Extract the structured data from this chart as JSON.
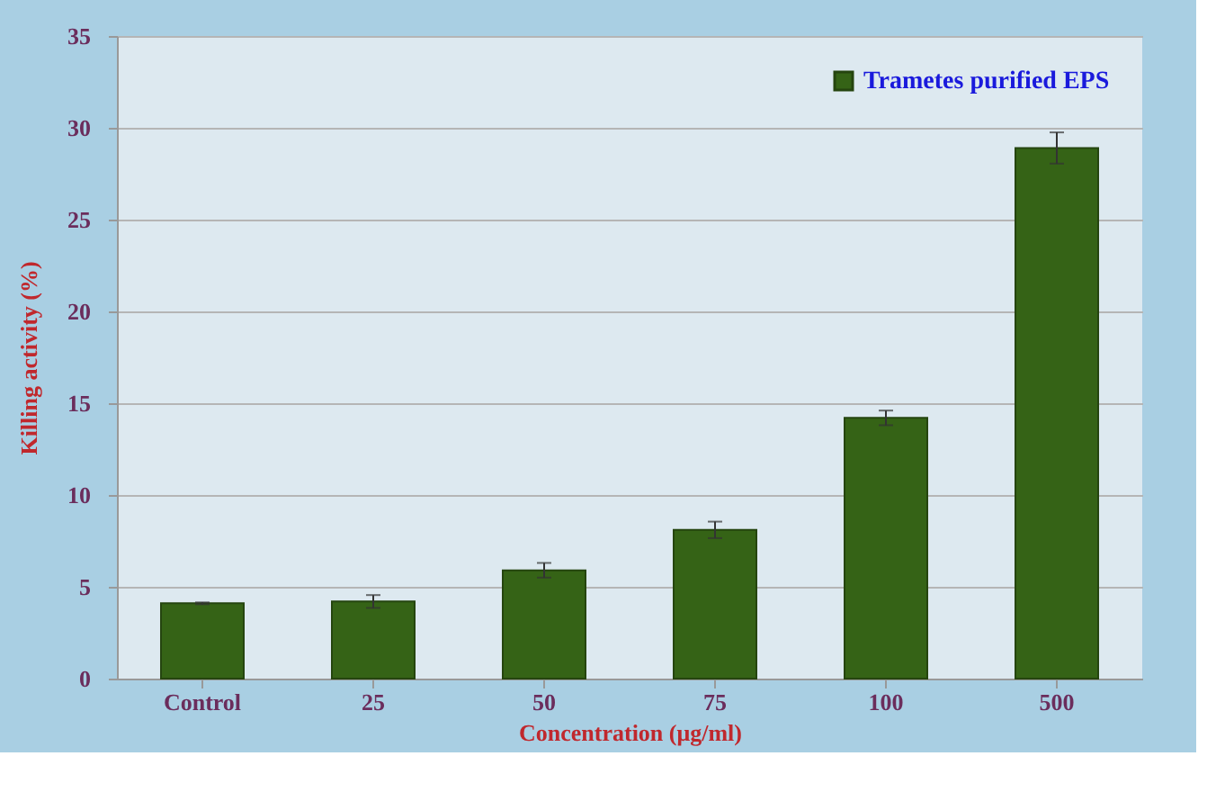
{
  "chart_data": {
    "type": "bar",
    "xlabel": "Concentration (μg/ml)",
    "ylabel": "Killing activity (%)",
    "categories": [
      "Control",
      "25",
      "50",
      "75",
      "100",
      "500"
    ],
    "series": [
      {
        "name": "Trametes purified EPS",
        "color": "#356316",
        "values": [
          4.1,
          4.2,
          5.9,
          8.1,
          14.2,
          28.9
        ],
        "errors": [
          0.05,
          0.35,
          0.4,
          0.45,
          0.4,
          0.85
        ]
      }
    ],
    "ylim": [
      0,
      35
    ],
    "yticks": [
      0,
      5,
      10,
      15,
      20,
      25,
      30,
      35
    ],
    "grid": "y",
    "legend": "top right"
  }
}
